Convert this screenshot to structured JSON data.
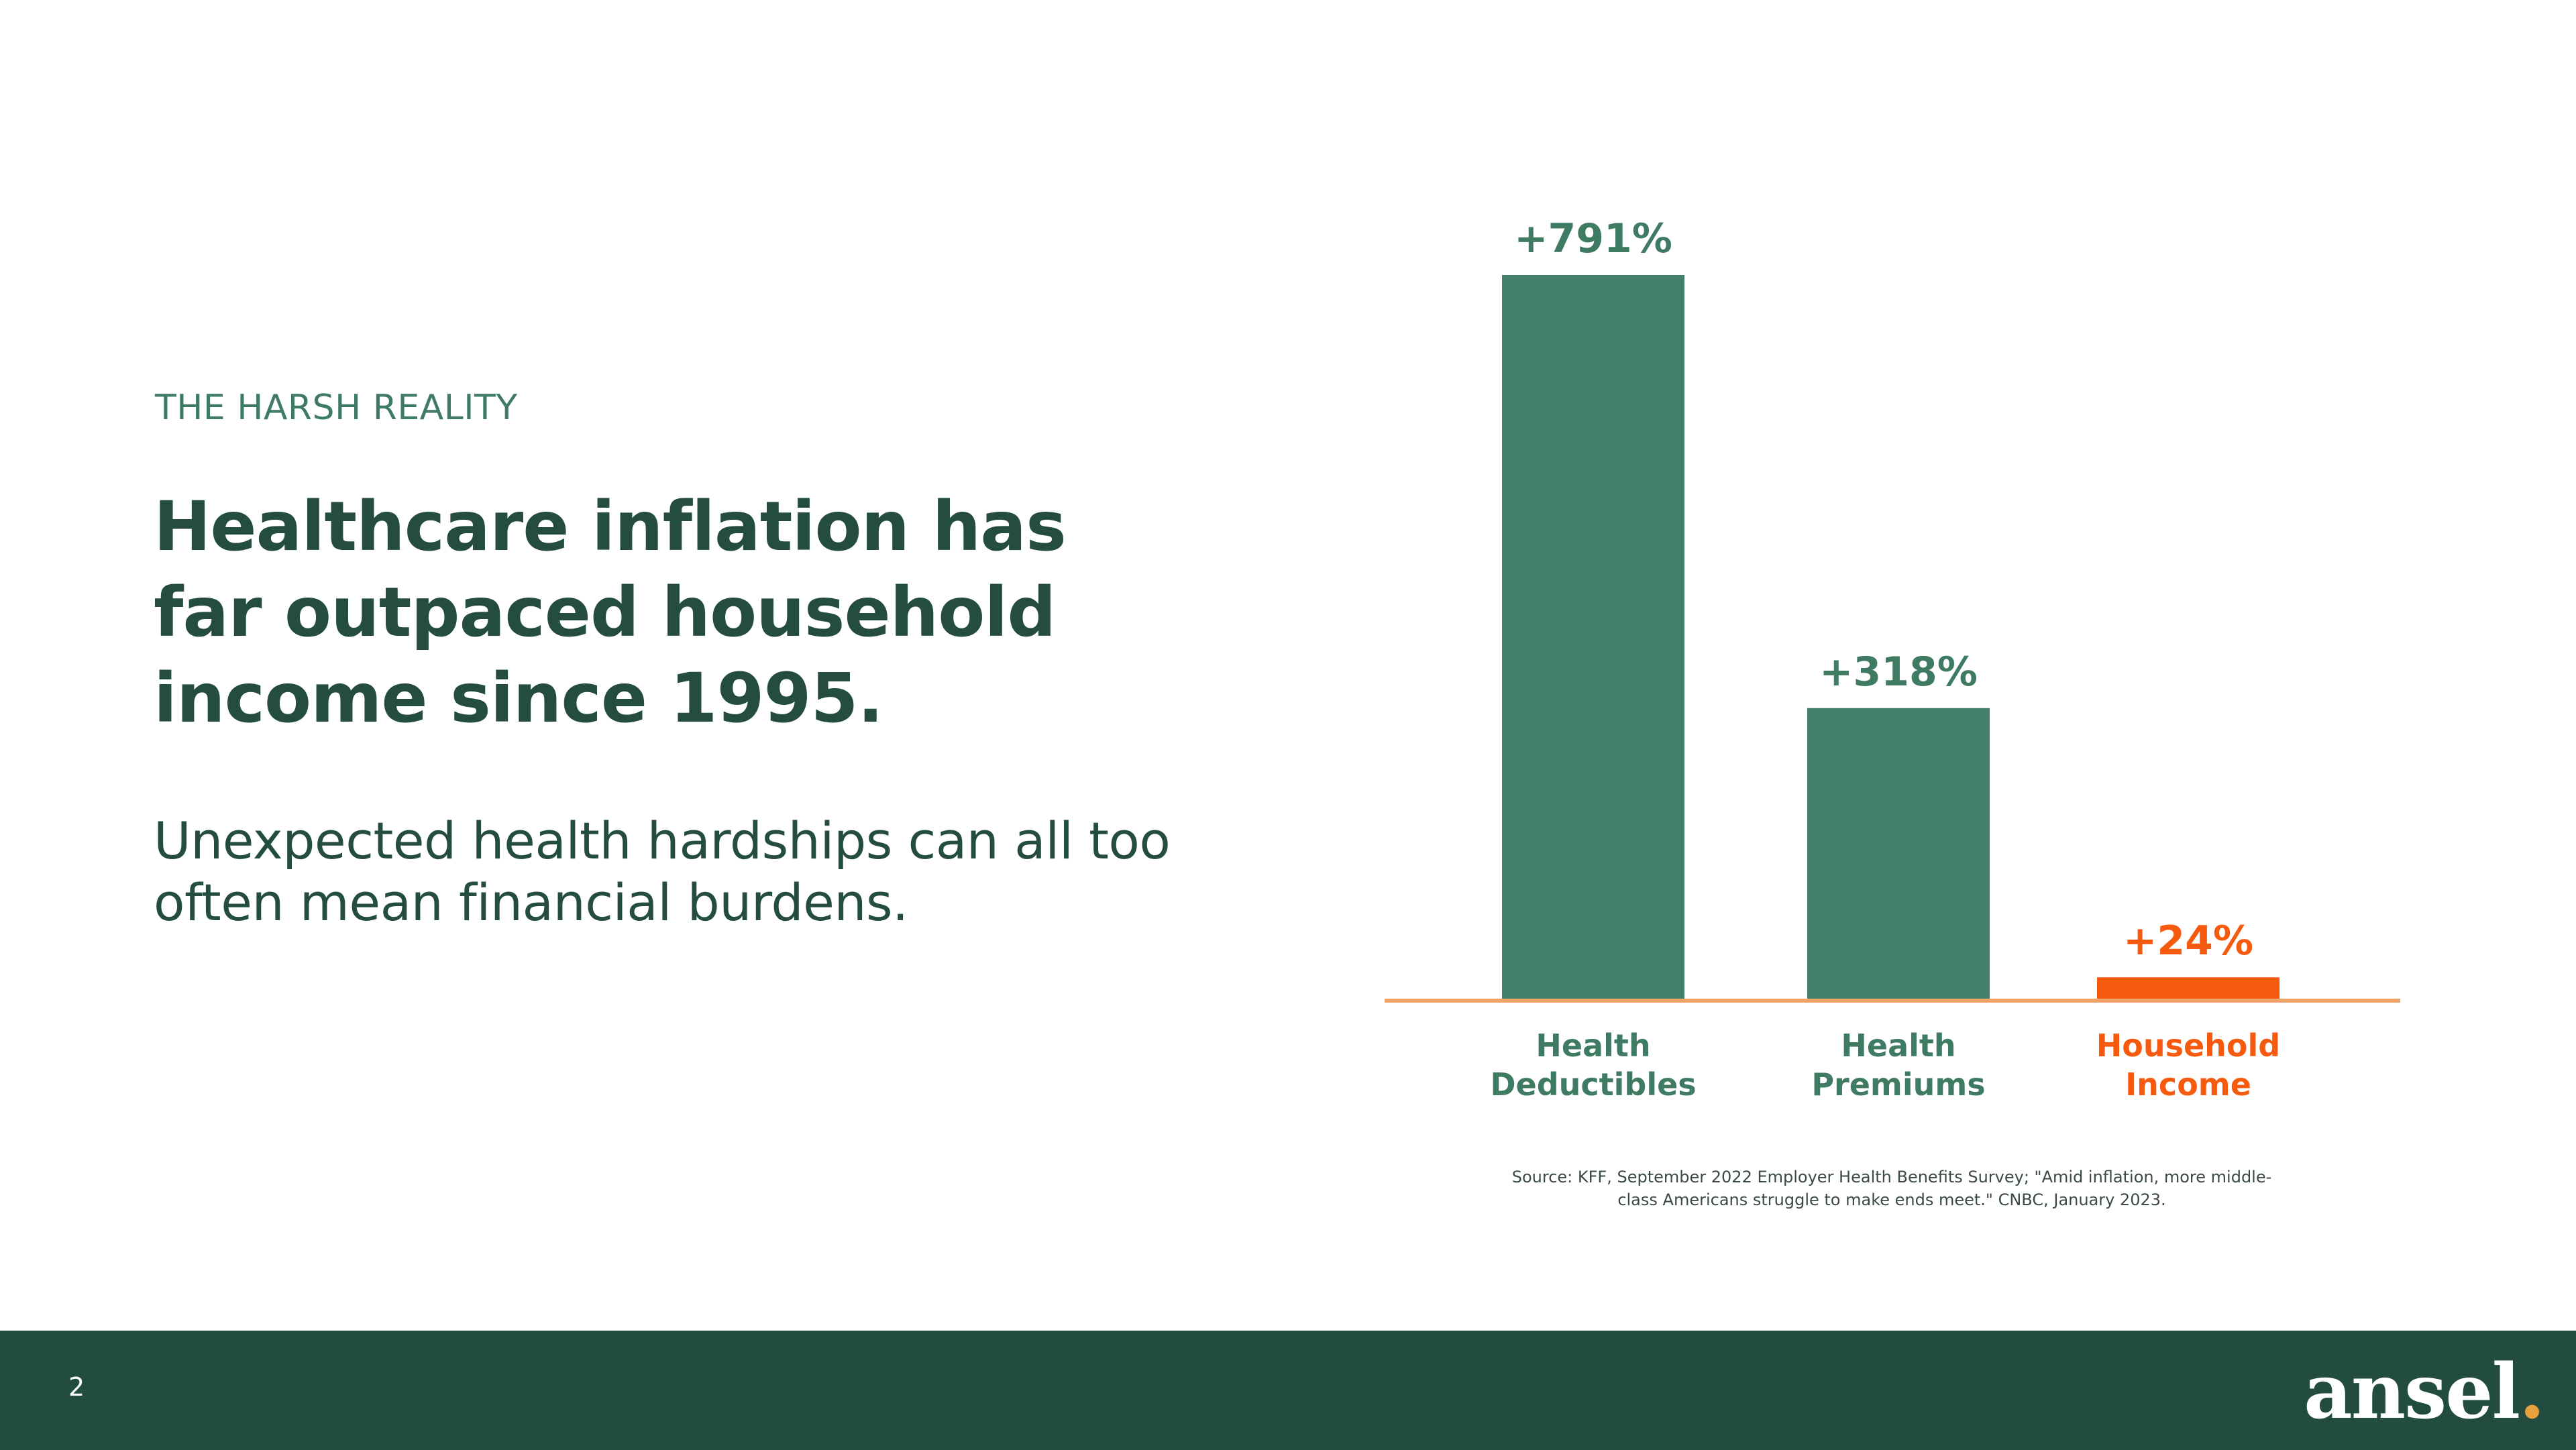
{
  "slide": {
    "eyebrow": "THE HARSH REALITY",
    "headline": "Healthcare inflation has far outpaced household income since 1995.",
    "subtext": "Unexpected health hardships can all too often mean financial burdens.",
    "source": "Source:  KFF, September 2022 Employer Health Benefits Survey; \"Amid inflation, more middle-class Americans struggle to make ends meet.\" CNBC, January 2023."
  },
  "footer": {
    "page_number": "2",
    "logo_text": "ansel",
    "logo_dot": "."
  },
  "colors": {
    "dark_green": "#244d40",
    "bar_green": "#43806a",
    "accent_orange": "#f55a0f",
    "baseline": "#f0a46a",
    "footer_bg": "#234c41"
  },
  "chart_data": {
    "type": "bar",
    "categories": [
      [
        "Health",
        "Deductibles"
      ],
      [
        "Health",
        "Premiums"
      ],
      [
        "Household",
        "Income"
      ]
    ],
    "values": [
      791,
      318,
      24
    ],
    "value_labels": [
      "+791%",
      "+318%",
      "+24%"
    ],
    "bar_colors": [
      "#43806a",
      "#43806a",
      "#f55a0f"
    ],
    "label_colors": [
      "#3f7a63",
      "#3f7a63",
      "#f55a0f"
    ],
    "ylim": [
      0,
      791
    ],
    "grid": false,
    "legend": "none"
  }
}
